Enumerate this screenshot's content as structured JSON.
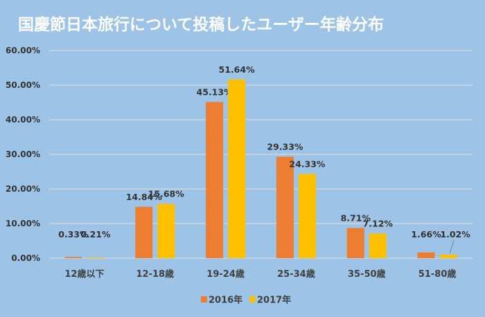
{
  "chart_data": {
    "type": "bar",
    "title": "国慶節日本旅行について投稿したユーザー年齢分布",
    "categories": [
      "12歳以下",
      "12-18歳",
      "19-24歳",
      "25-34歳",
      "35-50歳",
      "51-80歳"
    ],
    "series": [
      {
        "name": "2016年",
        "color": "#ed7d31",
        "values": [
          0.33,
          14.84,
          45.13,
          29.33,
          8.71,
          1.66
        ],
        "labels": [
          "0.33%",
          "14.84%",
          "45.13%",
          "29.33%",
          "8.71%",
          "1.66%"
        ]
      },
      {
        "name": "2017年",
        "color": "#ffc000",
        "values": [
          0.21,
          15.68,
          51.64,
          24.33,
          7.12,
          1.02
        ],
        "labels": [
          "0.21%",
          "15.68%",
          "51.64%",
          "24.33%",
          "7.12%",
          "1.02%"
        ]
      }
    ],
    "yticks": [
      "0.00%",
      "10.00%",
      "20.00%",
      "30.00%",
      "40.00%",
      "50.00%",
      "60.00%"
    ],
    "ylim": [
      0,
      60
    ],
    "grid": true,
    "legend": "bottom",
    "background": "#9dc3e6"
  }
}
